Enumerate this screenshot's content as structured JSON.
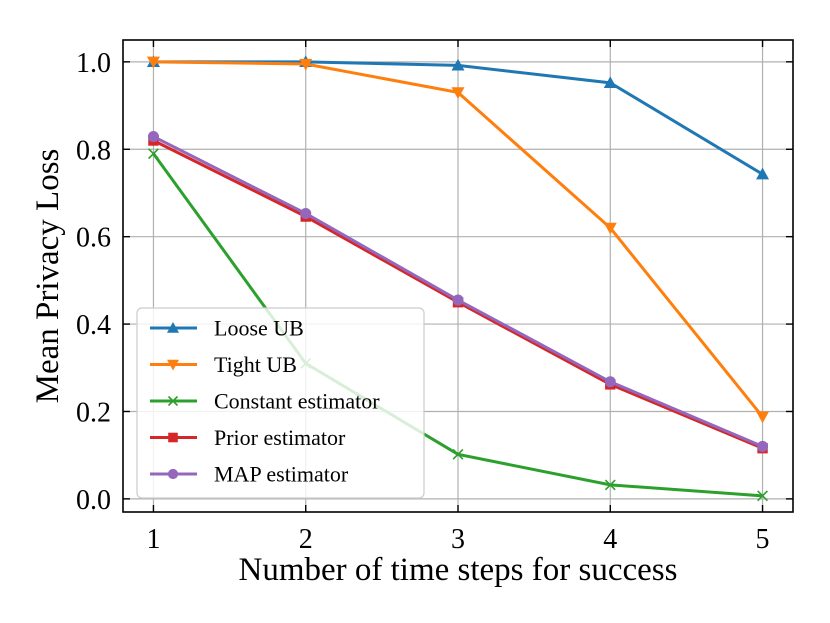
{
  "chart_data": {
    "type": "line",
    "title": "",
    "xlabel": "Number of time steps for success",
    "ylabel": "Mean Privacy Loss",
    "x": [
      1,
      2,
      3,
      4,
      5
    ],
    "xticks": [
      1,
      2,
      3,
      4,
      5
    ],
    "yticks": [
      0.0,
      0.2,
      0.4,
      0.6,
      0.8,
      1.0
    ],
    "xlim": [
      0.8,
      5.2
    ],
    "ylim": [
      -0.03,
      1.05
    ],
    "grid": true,
    "legend_position": "lower-left",
    "series": [
      {
        "name": "Loose UB",
        "color": "#1f77b4",
        "marker": "triangle-up",
        "values": [
          1.0,
          1.0,
          0.992,
          0.952,
          0.743
        ]
      },
      {
        "name": "Tight UB",
        "color": "#ff7f0e",
        "marker": "triangle-down",
        "values": [
          1.0,
          0.995,
          0.93,
          0.62,
          0.188
        ]
      },
      {
        "name": "Constant estimator",
        "color": "#2ca02c",
        "marker": "x",
        "values": [
          0.79,
          0.31,
          0.102,
          0.032,
          0.007
        ]
      },
      {
        "name": "Prior estimator",
        "color": "#d62728",
        "marker": "square",
        "values": [
          0.82,
          0.646,
          0.45,
          0.262,
          0.116
        ]
      },
      {
        "name": "MAP estimator",
        "color": "#9467bd",
        "marker": "circle",
        "values": [
          0.829,
          0.653,
          0.455,
          0.268,
          0.12
        ]
      }
    ]
  }
}
